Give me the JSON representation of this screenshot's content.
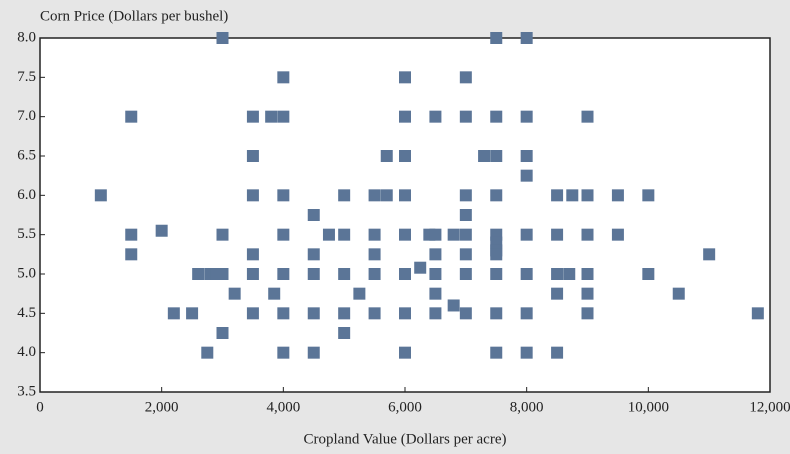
{
  "chart_data": {
    "type": "scatter",
    "y_label": "Corn Price (Dollars per bushel)",
    "x_label": "Cropland Value (Dollars per acre)",
    "color": "#5b7597",
    "xlim": [
      0,
      12000
    ],
    "xticks": [
      0,
      {
        "value": 2000,
        "label": "2,000"
      },
      {
        "value": 4000,
        "label": "4,000"
      },
      {
        "value": 6000,
        "label": "6,000"
      },
      {
        "value": 8000,
        "label": "8,000"
      },
      {
        "value": 10000,
        "label": "10,000"
      },
      {
        "value": 12000,
        "label": "12,000"
      }
    ],
    "ylim": [
      3.5,
      8
    ],
    "yticks": [
      3.5,
      {
        "value": 4,
        "label": "4.0"
      },
      4.5,
      {
        "value": 5,
        "label": "5.0"
      },
      5.5,
      {
        "value": 6,
        "label": "6.0"
      },
      6.5,
      {
        "value": 7,
        "label": "7.0"
      },
      7.5,
      {
        "value": 8,
        "label": "8.0"
      }
    ],
    "x": [
      3000,
      7500,
      8000,
      4000,
      6000,
      7000,
      1500,
      3500,
      3800,
      4000,
      6000,
      6500,
      7000,
      7500,
      8000,
      9000,
      3500,
      5700,
      6000,
      7300,
      7500,
      8000,
      8000,
      1000,
      3500,
      4000,
      5000,
      5500,
      5700,
      6000,
      7000,
      7500,
      8500,
      8750,
      9000,
      9500,
      10000,
      7000,
      4500,
      1500,
      2000,
      3000,
      4000,
      4750,
      5000,
      5500,
      6000,
      6400,
      6500,
      6800,
      7000,
      7500,
      8000,
      8500,
      9000,
      9500,
      7500,
      7500,
      1500,
      3500,
      4500,
      5500,
      6500,
      7000,
      7500,
      11000,
      6250,
      2600,
      2800,
      2900,
      3000,
      3500,
      4000,
      4500,
      5000,
      5500,
      6000,
      6500,
      7000,
      7500,
      8000,
      8500,
      8700,
      9000,
      10000,
      3200,
      3850,
      5250,
      6500,
      8500,
      9000,
      10500,
      6800,
      2200,
      2500,
      3500,
      4000,
      4500,
      5000,
      5500,
      6000,
      6500,
      7000,
      7500,
      8000,
      9000,
      11800,
      3000,
      5000,
      2750,
      4000,
      4500,
      6000,
      7500,
      8000,
      8500
    ],
    "values": [
      8,
      8,
      8,
      7.5,
      7.5,
      7.5,
      7,
      7,
      7,
      7,
      7,
      7,
      7,
      7,
      7,
      7,
      6.5,
      6.5,
      6.5,
      6.5,
      6.5,
      6.5,
      6.25,
      6,
      6,
      6,
      6,
      6,
      6,
      6,
      6,
      6,
      6,
      6,
      6,
      6,
      6,
      5.75,
      5.75,
      5.5,
      5.55,
      5.5,
      5.5,
      5.5,
      5.5,
      5.5,
      5.5,
      5.5,
      5.5,
      5.5,
      5.5,
      5.5,
      5.5,
      5.5,
      5.5,
      5.5,
      5.4,
      5.3,
      5.25,
      5.25,
      5.25,
      5.25,
      5.25,
      5.25,
      5.25,
      5.25,
      5.08,
      5,
      5,
      5,
      5,
      5,
      5,
      5,
      5,
      5,
      5,
      5,
      5,
      5,
      5,
      5,
      5,
      5,
      5,
      4.75,
      4.75,
      4.75,
      4.75,
      4.75,
      4.75,
      4.75,
      4.6,
      4.5,
      4.5,
      4.5,
      4.5,
      4.5,
      4.5,
      4.5,
      4.5,
      4.5,
      4.5,
      4.5,
      4.5,
      4.5,
      4.5,
      4.25,
      4.25,
      4,
      4,
      4,
      4,
      4,
      4,
      4
    ]
  }
}
